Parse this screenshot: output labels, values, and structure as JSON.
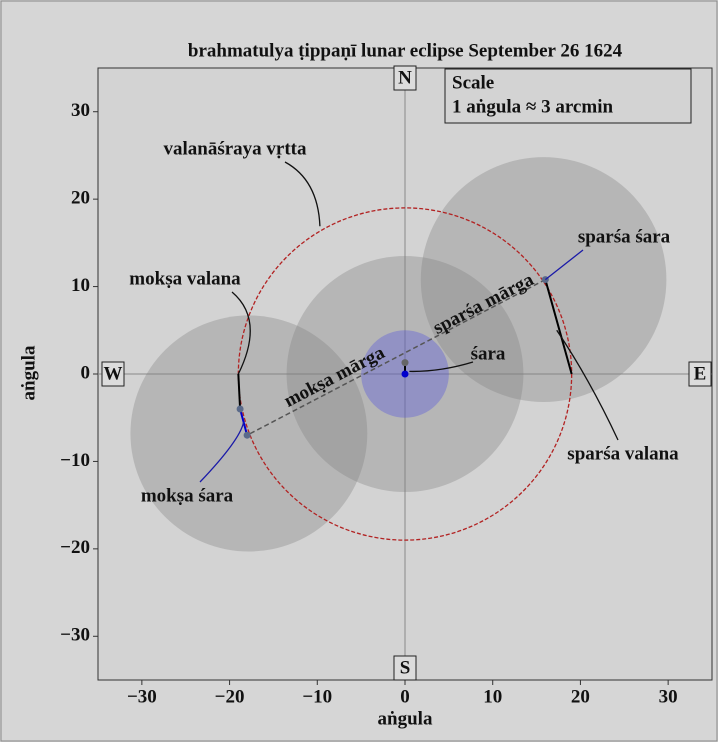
{
  "chart_data": {
    "type": "eclipse-diagram",
    "title": "brahmatulya ṭippaṇī lunar eclipse September 26 1624",
    "xlabel": "aṅgula",
    "ylabel": "aṅgula",
    "xlim": [
      -35,
      35
    ],
    "ylim": [
      -35,
      35
    ],
    "xticks": [
      {
        "value": -30,
        "label": "−30"
      },
      {
        "value": -20,
        "label": "−20"
      },
      {
        "value": -10,
        "label": "−10"
      },
      0,
      10,
      20,
      30
    ],
    "yticks": [
      {
        "value": -30,
        "label": "−30"
      },
      {
        "value": -20,
        "label": "−20"
      },
      {
        "value": -10,
        "label": "−10"
      },
      0,
      10,
      20,
      30
    ],
    "scale_box": [
      "Scale",
      "1 aṅgula ≈ 3 arcmin"
    ],
    "directions": [
      "N",
      "S",
      "W",
      "E"
    ],
    "circles": [
      {
        "cx": 0,
        "cy": 0,
        "r": 13.5,
        "color": "#808080"
      },
      {
        "cx": 15.8,
        "cy": 10.8,
        "r": 14,
        "color": "#808080"
      },
      {
        "cx": -17.8,
        "cy": -6.8,
        "r": 13.5,
        "color": "#808080"
      },
      {
        "cx": 0,
        "cy": 0,
        "r": 5,
        "color": "#5050e0"
      }
    ],
    "valana_circle": {
      "cx": 0,
      "cy": 0,
      "r": 19,
      "color": "#b22222"
    },
    "segments": [
      {
        "x": [
          16,
          -18
        ],
        "y": [
          10.8,
          -7
        ],
        "color": "#555555",
        "dashed": true
      },
      {
        "x": [
          16,
          19
        ],
        "y": [
          10.8,
          0
        ],
        "color": "#000000"
      },
      {
        "x": [
          -19,
          -18.8
        ],
        "y": [
          0,
          -4
        ],
        "color": "#000000"
      },
      {
        "x": [
          -18.8,
          -18
        ],
        "y": [
          -4,
          -7
        ],
        "color": "#0000cc"
      },
      {
        "x": [
          0,
          0
        ],
        "y": [
          0,
          1.3
        ],
        "color": "#000000"
      }
    ],
    "points": [
      {
        "x": 16,
        "y": 10.8,
        "color": "#5a6a8a"
      },
      {
        "x": -18.8,
        "y": -4,
        "color": "#5a6a8a"
      },
      {
        "x": -18,
        "y": -7,
        "color": "#5a6a8a"
      },
      {
        "x": 0,
        "y": 1.3,
        "color": "#666666"
      },
      {
        "x": 0,
        "y": 0,
        "color": "#0000cc"
      }
    ],
    "annotations": [
      {
        "text": "valanāśraya vṛtta",
        "x": -9.7,
        "y": 16.9,
        "color": "#111111"
      },
      {
        "text": "mokṣa valana",
        "x": -19,
        "y": 0,
        "color": "#111111"
      },
      {
        "text": "mokṣa śara",
        "x": -18.4,
        "y": -5.5,
        "color": "#1a1aa8"
      },
      {
        "text": "sparśa śara",
        "x": 16,
        "y": 10.8,
        "color": "#1a1aa8"
      },
      {
        "text": "sparśa valana",
        "x": 17.3,
        "y": 5,
        "color": "#111111"
      },
      {
        "text": "śara",
        "x": 0.5,
        "y": 0.3,
        "color": "#111111"
      },
      {
        "text": "mokṣa mārga",
        "color": "#111111"
      },
      {
        "text": "sparśa mārga",
        "color": "#111111"
      }
    ]
  }
}
